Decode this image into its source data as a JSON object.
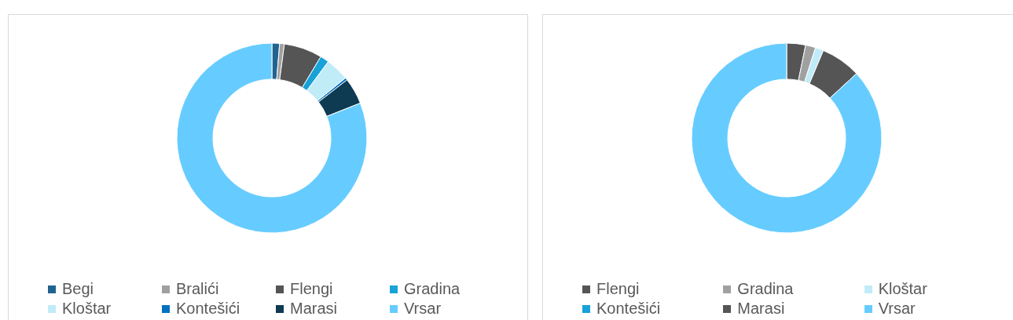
{
  "chart_data": [
    {
      "type": "donut",
      "categories": [
        "Begi",
        "Bralići",
        "Flengi",
        "Gradina",
        "Kloštar",
        "Kontešići",
        "Marasi",
        "Vrsar"
      ],
      "values": [
        1.3,
        0.8,
        6.5,
        1.5,
        4,
        0.4,
        4.5,
        81
      ],
      "colors": [
        "#1f6391",
        "#a0a0a0",
        "#555555",
        "#17a2d8",
        "#c0ecf8",
        "#0070c0",
        "#0e3a52",
        "#66ccff"
      ],
      "legend": "bottom"
    },
    {
      "type": "donut",
      "categories": [
        "Flengi",
        "Gradina",
        "Kloštar",
        "Kontešići",
        "Marasi",
        "Vrsar"
      ],
      "values": [
        3.2,
        1.7,
        1.4,
        null,
        6.8,
        86.7
      ],
      "colors": [
        "#555555",
        "#a0a0a0",
        "#c0ecf8",
        "#17a2d8",
        "#555555",
        "#66ccff"
      ],
      "legend": "bottom"
    }
  ]
}
